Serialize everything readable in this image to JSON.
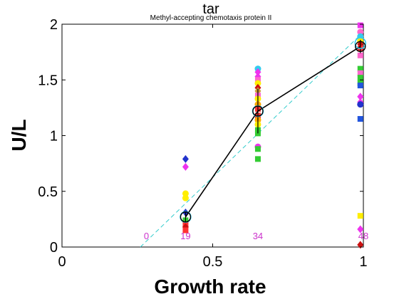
{
  "chart_data": {
    "type": "scatter",
    "title": "tar",
    "subtitle": "Methyl-accepting chemotaxis protein II",
    "xlabel": "Growth rate",
    "ylabel": "U/L",
    "xlim": [
      0,
      1
    ],
    "ylim": [
      0,
      2
    ],
    "xticks": [
      "0",
      "0.5",
      "1"
    ],
    "yticks": [
      "0",
      "0.5",
      "1",
      "1.5",
      "2"
    ],
    "grid": false,
    "count_labels": [
      {
        "x": 0.28,
        "text": "0"
      },
      {
        "x": 0.41,
        "text": "19"
      },
      {
        "x": 0.65,
        "text": "34"
      },
      {
        "x": 1.0,
        "text": "48"
      }
    ],
    "count_color": "#cc33cc",
    "mean_line": {
      "color": "#000000",
      "points": [
        {
          "x": 0.41,
          "y": 0.27,
          "err": 0.05
        },
        {
          "x": 0.65,
          "y": 1.22,
          "err": 0.2
        },
        {
          "x": 0.99,
          "y": 1.8,
          "err": 0.06
        }
      ]
    },
    "cyan_circles": [
      {
        "x": 0.41,
        "y": 0.27
      },
      {
        "x": 0.65,
        "y": 1.22
      },
      {
        "x": 0.99,
        "y": 1.83
      }
    ],
    "fit_line": {
      "color": "#33cccc",
      "points": [
        [
          0.26,
          0.0
        ],
        [
          1.0,
          1.93
        ]
      ]
    },
    "points": [
      {
        "x": 0.41,
        "y": 0.79,
        "shape": "diamond",
        "color": "#2233cc"
      },
      {
        "x": 0.41,
        "y": 0.72,
        "shape": "diamond",
        "color": "#ee33ee"
      },
      {
        "x": 0.41,
        "y": 0.48,
        "shape": "circle",
        "color": "#ffee00"
      },
      {
        "x": 0.41,
        "y": 0.44,
        "shape": "circle",
        "color": "#ffee00"
      },
      {
        "x": 0.41,
        "y": 0.33,
        "shape": "diamond",
        "color": "#ffffff"
      },
      {
        "x": 0.41,
        "y": 0.31,
        "shape": "diamond",
        "color": "#2233cc"
      },
      {
        "x": 0.41,
        "y": 0.24,
        "shape": "square",
        "color": "#33cc33"
      },
      {
        "x": 0.41,
        "y": 0.2,
        "shape": "square",
        "color": "#ff3333"
      },
      {
        "x": 0.41,
        "y": 0.18,
        "shape": "diamond",
        "color": "#cc1111"
      },
      {
        "x": 0.41,
        "y": 0.15,
        "shape": "square",
        "color": "#ff3333"
      },
      {
        "x": 0.65,
        "y": 1.6,
        "shape": "circle",
        "color": "#33ccee"
      },
      {
        "x": 0.65,
        "y": 1.57,
        "shape": "diamond",
        "color": "#ee33ee"
      },
      {
        "x": 0.65,
        "y": 1.53,
        "shape": "diamond",
        "color": "#ee33ee"
      },
      {
        "x": 0.65,
        "y": 1.5,
        "shape": "square",
        "color": "#ff66cc"
      },
      {
        "x": 0.65,
        "y": 1.47,
        "shape": "circle",
        "color": "#ffee00"
      },
      {
        "x": 0.65,
        "y": 1.43,
        "shape": "diamond",
        "color": "#cc1111"
      },
      {
        "x": 0.65,
        "y": 1.4,
        "shape": "diamond",
        "color": "#cc9933"
      },
      {
        "x": 0.65,
        "y": 1.36,
        "shape": "square",
        "color": "#ff66cc"
      },
      {
        "x": 0.65,
        "y": 1.33,
        "shape": "circle",
        "color": "#ffee00"
      },
      {
        "x": 0.65,
        "y": 1.28,
        "shape": "circle",
        "color": "#ffaa00"
      },
      {
        "x": 0.65,
        "y": 1.24,
        "shape": "square",
        "color": "#ff3333"
      },
      {
        "x": 0.65,
        "y": 1.18,
        "shape": "square",
        "color": "#ff3333"
      },
      {
        "x": 0.65,
        "y": 1.14,
        "shape": "circle",
        "color": "#ffaa00"
      },
      {
        "x": 0.65,
        "y": 1.1,
        "shape": "circle",
        "color": "#ffee00"
      },
      {
        "x": 0.65,
        "y": 1.05,
        "shape": "square",
        "color": "#33cc33"
      },
      {
        "x": 0.65,
        "y": 1.02,
        "shape": "square",
        "color": "#33cc33"
      },
      {
        "x": 0.65,
        "y": 0.9,
        "shape": "circle",
        "color": "#ee33ee"
      },
      {
        "x": 0.65,
        "y": 0.88,
        "shape": "square",
        "color": "#33cc33"
      },
      {
        "x": 0.65,
        "y": 0.79,
        "shape": "square",
        "color": "#33cc33"
      },
      {
        "x": 0.99,
        "y": 1.99,
        "shape": "square",
        "color": "#ee33ee"
      },
      {
        "x": 0.99,
        "y": 1.93,
        "shape": "circle",
        "color": "#ff66cc"
      },
      {
        "x": 0.99,
        "y": 1.89,
        "shape": "circle",
        "color": "#33ccee"
      },
      {
        "x": 0.99,
        "y": 1.85,
        "shape": "circle",
        "color": "#ffee00"
      },
      {
        "x": 0.99,
        "y": 1.82,
        "shape": "diamond",
        "color": "#cc1111"
      },
      {
        "x": 0.99,
        "y": 1.78,
        "shape": "square",
        "color": "#ff3333"
      },
      {
        "x": 0.99,
        "y": 1.72,
        "shape": "square",
        "color": "#ff66cc"
      },
      {
        "x": 0.99,
        "y": 1.6,
        "shape": "square",
        "color": "#33cc33"
      },
      {
        "x": 0.99,
        "y": 1.56,
        "shape": "square",
        "color": "#ff66cc"
      },
      {
        "x": 0.99,
        "y": 1.52,
        "shape": "square",
        "color": "#33cc33"
      },
      {
        "x": 0.99,
        "y": 1.47,
        "shape": "square",
        "color": "#33cc33"
      },
      {
        "x": 0.99,
        "y": 1.45,
        "shape": "square",
        "color": "#2255dd"
      },
      {
        "x": 0.99,
        "y": 1.35,
        "shape": "diamond",
        "color": "#ee33ee"
      },
      {
        "x": 0.99,
        "y": 1.3,
        "shape": "diamond",
        "color": "#ee33ee"
      },
      {
        "x": 0.99,
        "y": 1.28,
        "shape": "circle",
        "color": "#2233cc"
      },
      {
        "x": 0.99,
        "y": 1.15,
        "shape": "square",
        "color": "#2255dd"
      },
      {
        "x": 0.99,
        "y": 0.28,
        "shape": "square",
        "color": "#ffee00"
      },
      {
        "x": 0.99,
        "y": 0.16,
        "shape": "diamond",
        "color": "#ee33ee"
      },
      {
        "x": 0.99,
        "y": 0.02,
        "shape": "diamond",
        "color": "#cc1111"
      }
    ]
  }
}
